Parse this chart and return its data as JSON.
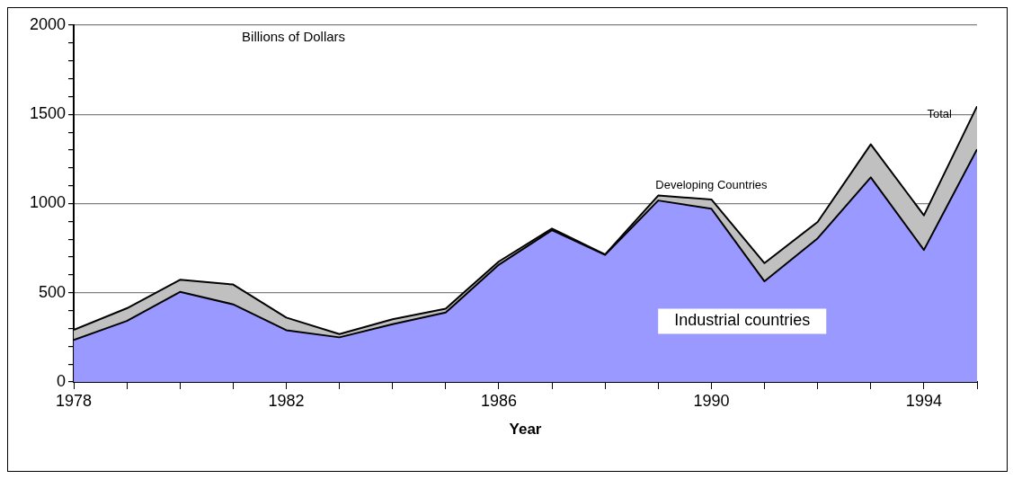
{
  "chart_data": {
    "type": "area",
    "stacked": true,
    "xlabel": "Year",
    "ylabel": "Billions of Dollars",
    "x": [
      1978,
      1979,
      1980,
      1981,
      1982,
      1983,
      1984,
      1985,
      1986,
      1987,
      1988,
      1989,
      1990,
      1991,
      1992,
      1993,
      1994,
      1995
    ],
    "series": [
      {
        "name": "Industrial countries",
        "color": "#9999ff",
        "values": [
          235,
          342,
          505,
          435,
          290,
          250,
          324,
          389,
          657,
          851,
          712,
          1017,
          971,
          564,
          805,
          1147,
          740,
          1304
        ]
      },
      {
        "name": "Developing Countries",
        "color": "#c0c0c0",
        "values": [
          57,
          71,
          68,
          111,
          71,
          18,
          27,
          22,
          18,
          9,
          3,
          28,
          52,
          102,
          92,
          185,
          194,
          241
        ]
      }
    ],
    "xlim": [
      1978,
      1995
    ],
    "xticks": [
      1978,
      {
        "value": 1979,
        "label": null
      },
      {
        "value": 1980,
        "label": null
      },
      {
        "value": 1981,
        "label": null
      },
      1982,
      {
        "value": 1983,
        "label": null
      },
      {
        "value": 1984,
        "label": null
      },
      {
        "value": 1985,
        "label": null
      },
      1986,
      {
        "value": 1987,
        "label": null
      },
      {
        "value": 1988,
        "label": null
      },
      {
        "value": 1989,
        "label": null
      },
      1990,
      {
        "value": 1991,
        "label": null
      },
      {
        "value": 1992,
        "label": null
      },
      {
        "value": 1993,
        "label": null
      },
      1994,
      {
        "value": 1995,
        "label": null
      }
    ],
    "ylim": [
      0,
      2000
    ],
    "yticks": [
      0,
      {
        "value": 100,
        "label": null
      },
      {
        "value": 200,
        "label": null
      },
      {
        "value": 300,
        "label": null
      },
      {
        "value": 400,
        "label": null
      },
      500,
      {
        "value": 600,
        "label": null
      },
      {
        "value": 700,
        "label": null
      },
      {
        "value": 800,
        "label": null
      },
      {
        "value": 900,
        "label": null
      },
      1000,
      {
        "value": 1100,
        "label": null
      },
      {
        "value": 1200,
        "label": null
      },
      {
        "value": 1300,
        "label": null
      },
      {
        "value": 1400,
        "label": null
      },
      1500,
      {
        "value": 1600,
        "label": null
      },
      {
        "value": 1700,
        "label": null
      },
      {
        "value": 1800,
        "label": null
      },
      {
        "value": 1900,
        "label": null
      },
      2000
    ],
    "grid": "y",
    "legend": false,
    "annotations": [
      "Total"
    ]
  }
}
